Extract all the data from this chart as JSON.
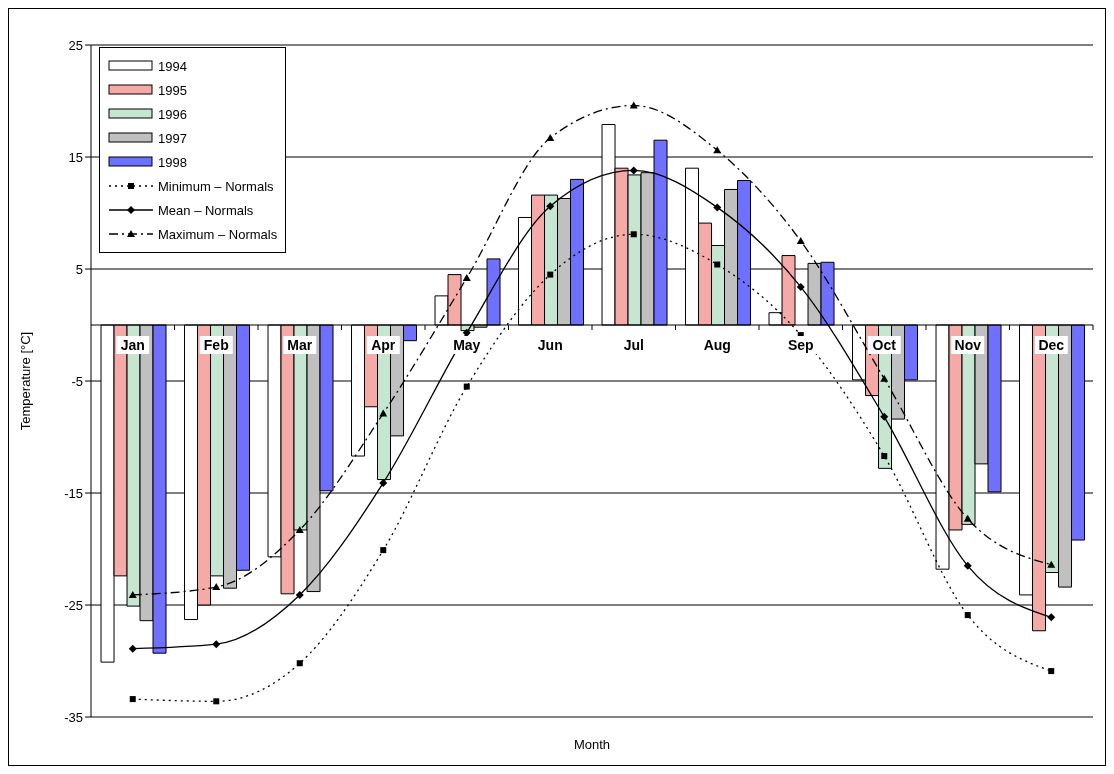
{
  "chart_data": {
    "type": "bar",
    "xlabel": "Month",
    "ylabel": "Temperature [°C]",
    "categories": [
      "Jan",
      "Feb",
      "Mar",
      "Apr",
      "May",
      "Jun",
      "Jul",
      "Aug",
      "Sep",
      "Oct",
      "Nov",
      "Dec"
    ],
    "series": [
      {
        "name": "1994",
        "color": "#ffffff",
        "values": [
          -30.1,
          -26.3,
          -20.7,
          -11.7,
          2.6,
          9.6,
          17.9,
          14.0,
          1.1,
          -4.9,
          -21.8,
          -24.1
        ]
      },
      {
        "name": "1995",
        "color": "#f6aaa8",
        "values": [
          -22.4,
          -25.0,
          -24.0,
          -7.3,
          4.5,
          11.6,
          14.0,
          9.1,
          6.2,
          -6.3,
          -18.3,
          -27.3
        ]
      },
      {
        "name": "1996",
        "color": "#c6e6d2",
        "values": [
          -25.1,
          -22.4,
          -18.3,
          -13.8,
          -0.5,
          11.6,
          13.4,
          7.1,
          null,
          -12.8,
          -17.8,
          -22.1
        ]
      },
      {
        "name": "1997",
        "color": "#c0c0c0",
        "values": [
          -26.4,
          -23.5,
          -23.8,
          -9.9,
          -0.2,
          11.3,
          13.6,
          12.1,
          5.5,
          -8.4,
          -12.4,
          -23.4
        ]
      },
      {
        "name": "1998",
        "color": "#7070ff",
        "values": [
          -29.3,
          -21.9,
          -14.8,
          -1.4,
          5.9,
          13.0,
          16.5,
          12.9,
          5.6,
          -4.9,
          -14.9,
          -19.2
        ]
      },
      {
        "name": "Minimum – Normals",
        "type": "line",
        "color": "#000000",
        "line_style": "dotted",
        "marker": "square",
        "values": [
          -33.4,
          -33.6,
          -30.2,
          -20.1,
          -5.5,
          4.5,
          8.1,
          5.4,
          -0.9,
          -11.7,
          -25.9,
          -30.9
        ]
      },
      {
        "name": "Mean – Normals",
        "type": "line",
        "color": "#000000",
        "line_style": "solid",
        "marker": "diamond",
        "values": [
          -28.9,
          -28.5,
          -24.1,
          -14.1,
          -0.7,
          10.6,
          13.8,
          10.5,
          3.4,
          -8.2,
          -21.5,
          -26.1
        ]
      },
      {
        "name": "Maximum – Normals",
        "type": "line",
        "color": "#000000",
        "line_style": "dashed",
        "marker": "triangle",
        "values": [
          -24.1,
          -23.4,
          -18.3,
          -7.9,
          4.2,
          16.7,
          19.6,
          15.6,
          7.5,
          -4.8,
          -17.3,
          -21.4
        ]
      }
    ],
    "ylim": [
      -35,
      25
    ],
    "yticks": [
      -35,
      -25,
      -15,
      -5,
      5,
      15,
      25
    ],
    "grid": "y",
    "legend": "top left"
  }
}
